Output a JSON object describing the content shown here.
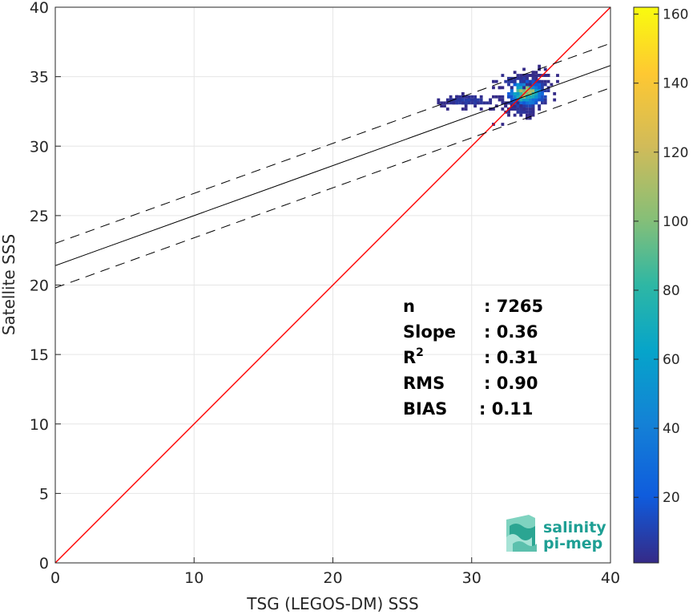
{
  "chart_data": {
    "type": "heatmap",
    "title": "",
    "xlabel": "TSG (LEGOS-DM) SSS",
    "ylabel": "Satellite SSS",
    "xlim": [
      0,
      40
    ],
    "ylim": [
      0,
      40
    ],
    "xticks": [
      "0",
      "10",
      "20",
      "30",
      "40"
    ],
    "yticks": [
      "0",
      "5",
      "10",
      "15",
      "20",
      "25",
      "30",
      "35",
      "40"
    ],
    "grid": true,
    "identity_line": {
      "color": "#ff0000",
      "from": [
        0,
        0
      ],
      "to": [
        40,
        40
      ]
    },
    "regression_line": {
      "intercept": 21.4,
      "slope": 0.36,
      "color": "#000000"
    },
    "confidence_lines": {
      "offset": 1.6,
      "style": "dashed",
      "color": "#000000"
    },
    "density_clusters": [
      {
        "x": 33.8,
        "y": 33.7,
        "sx": 0.8,
        "sy": 0.55,
        "rot": 0.6,
        "count": 520,
        "peak": 160
      },
      {
        "x": 29.6,
        "y": 33.15,
        "sx": 1.3,
        "sy": 0.2,
        "rot": 0.0,
        "count": 85,
        "peak": 12
      },
      {
        "x": 33.0,
        "y": 34.6,
        "sx": 0.9,
        "sy": 0.25,
        "rot": 0.2,
        "count": 40,
        "peak": 10
      },
      {
        "x": 33.5,
        "y": 32.4,
        "sx": 0.6,
        "sy": 0.2,
        "rot": 0.0,
        "count": 30,
        "peak": 8
      }
    ],
    "colorbar": {
      "min": 1,
      "max": 162,
      "ticks": [
        "20",
        "40",
        "60",
        "80",
        "100",
        "120",
        "140",
        "160"
      ],
      "colormap": "parula"
    },
    "stats": [
      {
        "label": "n",
        "value": ": 7265"
      },
      {
        "label": "Slope",
        "value": ": 0.36"
      },
      {
        "label": "R",
        "sup": "2",
        "value": ": 0.31"
      },
      {
        "label": "RMS",
        "value": ": 0.90"
      },
      {
        "label": "BIAS",
        "value": ": 0.11"
      }
    ]
  },
  "logo": {
    "line1": "salinity",
    "line2": "pi-mep"
  }
}
